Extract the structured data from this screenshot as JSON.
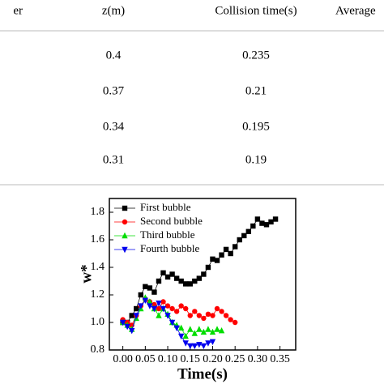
{
  "table": {
    "header": [
      "er",
      "z(m)",
      "Collision time(s)",
      "Average"
    ],
    "rows": [
      [
        0.4,
        0.235
      ],
      [
        0.37,
        0.21
      ],
      [
        0.34,
        0.195
      ],
      [
        0.31,
        0.19
      ]
    ]
  },
  "chart_data": {
    "type": "scatter",
    "x_label": "Time(s)",
    "y_label": "w*",
    "xlim": [
      -0.03,
      0.385
    ],
    "ylim": [
      0.8,
      1.9
    ],
    "xticks": [
      {
        "value": 0,
        "label": "0.00"
      },
      0.05,
      {
        "value": 0.1,
        "label": "0.10"
      },
      0.15,
      {
        "value": 0.2,
        "label": "0.20"
      },
      0.25,
      {
        "value": 0.3,
        "label": "0.30"
      },
      0.35
    ],
    "yticks": [
      0.8,
      {
        "value": 1,
        "label": "1.0"
      },
      1.2,
      1.4,
      1.6,
      1.8
    ],
    "legend": "upper-left",
    "series": [
      {
        "name": "First bubble",
        "color": "#000000",
        "marker": "square",
        "x": [
          0,
          0.01,
          0.02,
          0.03,
          0.04,
          0.05,
          0.06,
          0.07,
          0.08,
          0.09,
          0.1,
          0.11,
          0.12,
          0.13,
          0.14,
          0.15,
          0.16,
          0.17,
          0.18,
          0.19,
          0.2,
          0.21,
          0.22,
          0.23,
          0.24,
          0.25,
          0.26,
          0.27,
          0.28,
          0.29,
          0.3,
          0.31,
          0.32,
          0.33,
          0.34
        ],
        "values": [
          1.0,
          1.0,
          1.05,
          1.1,
          1.2,
          1.26,
          1.25,
          1.22,
          1.3,
          1.36,
          1.33,
          1.35,
          1.32,
          1.3,
          1.28,
          1.28,
          1.3,
          1.32,
          1.35,
          1.4,
          1.46,
          1.45,
          1.49,
          1.53,
          1.5,
          1.55,
          1.6,
          1.63,
          1.66,
          1.7,
          1.75,
          1.72,
          1.71,
          1.73,
          1.75
        ]
      },
      {
        "name": "Second bubble",
        "color": "#ff0000",
        "marker": "circle",
        "x": [
          0,
          0.01,
          0.02,
          0.03,
          0.04,
          0.05,
          0.06,
          0.07,
          0.08,
          0.09,
          0.1,
          0.11,
          0.12,
          0.13,
          0.14,
          0.15,
          0.16,
          0.17,
          0.18,
          0.19,
          0.2,
          0.21,
          0.22,
          0.23,
          0.24,
          0.25
        ],
        "values": [
          1.02,
          1.0,
          0.98,
          1.05,
          1.12,
          1.17,
          1.15,
          1.13,
          1.1,
          1.15,
          1.12,
          1.1,
          1.08,
          1.12,
          1.1,
          1.05,
          1.08,
          1.05,
          1.03,
          1.06,
          1.05,
          1.1,
          1.08,
          1.05,
          1.02,
          1.0
        ]
      },
      {
        "name": "Third bubble",
        "color": "#00dd00",
        "marker": "triangle-up",
        "x": [
          0,
          0.01,
          0.02,
          0.03,
          0.04,
          0.05,
          0.06,
          0.07,
          0.08,
          0.09,
          0.1,
          0.11,
          0.12,
          0.13,
          0.14,
          0.15,
          0.16,
          0.17,
          0.18,
          0.19,
          0.2,
          0.21,
          0.22
        ],
        "values": [
          1.0,
          0.98,
          0.95,
          1.03,
          1.1,
          1.18,
          1.15,
          1.1,
          1.05,
          1.1,
          1.06,
          1.0,
          0.98,
          0.96,
          0.9,
          0.95,
          0.92,
          0.95,
          0.93,
          0.95,
          0.93,
          0.95,
          0.94
        ]
      },
      {
        "name": "Fourth bubble",
        "color": "#0000ee",
        "marker": "triangle-down",
        "x": [
          0,
          0.01,
          0.02,
          0.03,
          0.04,
          0.05,
          0.06,
          0.07,
          0.08,
          0.09,
          0.1,
          0.11,
          0.12,
          0.13,
          0.14,
          0.15,
          0.16,
          0.17,
          0.18,
          0.19,
          0.2
        ],
        "values": [
          1.0,
          0.97,
          0.94,
          1.05,
          1.12,
          1.16,
          1.12,
          1.1,
          1.14,
          1.1,
          1.05,
          1.0,
          0.96,
          0.9,
          0.85,
          0.83,
          0.83,
          0.84,
          0.83,
          0.85,
          0.86
        ]
      }
    ]
  }
}
